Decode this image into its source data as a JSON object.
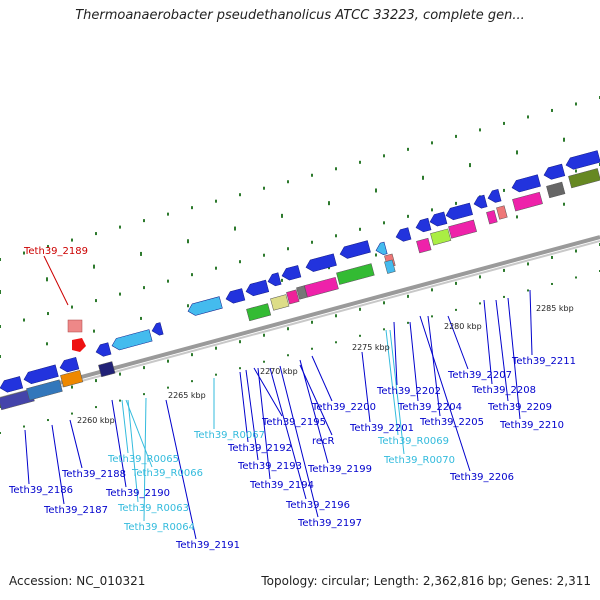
{
  "header": {
    "title": "Thermoanaerobacter pseudethanolicus ATCC 33223, complete gen..."
  },
  "footer": {
    "accession": "Accession: NC_010321",
    "summary": "Topology: circular; Length: 2,362,816 bp; Genes: 2,311"
  },
  "colors": {
    "cds_label": "#0000cc",
    "rna_label": "#33bbdd",
    "highlight_label": "#cc0000",
    "backbone": "#999999"
  },
  "scale": [
    "2260 kbp",
    "2265 kbp",
    "2270 kbp",
    "2275 kbp",
    "2280 kbp",
    "2285 kbp"
  ],
  "genes": [
    {
      "name": "Teth39_2189",
      "kind": "highlight"
    },
    {
      "name": "Teth39_2186",
      "kind": "cds"
    },
    {
      "name": "Teth39_2187",
      "kind": "cds"
    },
    {
      "name": "Teth39_2188",
      "kind": "cds"
    },
    {
      "name": "Teth39_2190",
      "kind": "cds"
    },
    {
      "name": "Teth39_2191",
      "kind": "cds"
    },
    {
      "name": "Teth39_R0065",
      "kind": "rna"
    },
    {
      "name": "Teth39_R0066",
      "kind": "rna"
    },
    {
      "name": "Teth39_R0063",
      "kind": "rna"
    },
    {
      "name": "Teth39_R0064",
      "kind": "rna"
    },
    {
      "name": "Teth39_R0067",
      "kind": "rna"
    },
    {
      "name": "Teth39_2192",
      "kind": "cds"
    },
    {
      "name": "Teth39_2193",
      "kind": "cds"
    },
    {
      "name": "Teth39_2194",
      "kind": "cds"
    },
    {
      "name": "Teth39_2195",
      "kind": "cds"
    },
    {
      "name": "recR",
      "kind": "cds"
    },
    {
      "name": "Teth39_2196",
      "kind": "cds"
    },
    {
      "name": "Teth39_2197",
      "kind": "cds"
    },
    {
      "name": "Teth39_2199",
      "kind": "cds"
    },
    {
      "name": "Teth39_2200",
      "kind": "cds"
    },
    {
      "name": "Teth39_2201",
      "kind": "cds"
    },
    {
      "name": "Teth39_R0069",
      "kind": "rna"
    },
    {
      "name": "Teth39_R0070",
      "kind": "rna"
    },
    {
      "name": "Teth39_2202",
      "kind": "cds"
    },
    {
      "name": "Teth39_2204",
      "kind": "cds"
    },
    {
      "name": "Teth39_2205",
      "kind": "cds"
    },
    {
      "name": "Teth39_2206",
      "kind": "cds"
    },
    {
      "name": "Teth39_2207",
      "kind": "cds"
    },
    {
      "name": "Teth39_2208",
      "kind": "cds"
    },
    {
      "name": "Teth39_2209",
      "kind": "cds"
    },
    {
      "name": "Teth39_2210",
      "kind": "cds"
    },
    {
      "name": "Teth39_2211",
      "kind": "cds"
    }
  ]
}
